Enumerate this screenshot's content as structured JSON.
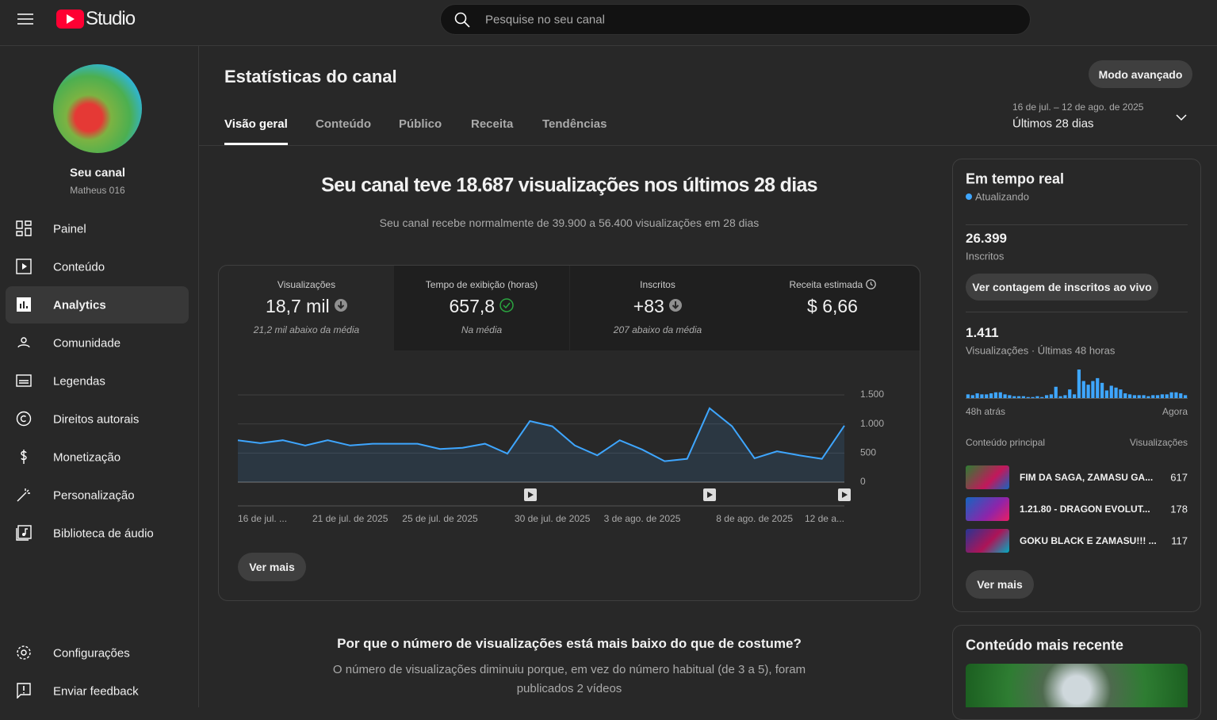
{
  "header": {
    "logo": "Studio",
    "search_placeholder": "Pesquise no seu canal"
  },
  "sidebar": {
    "channel_title": "Seu canal",
    "channel_name": "Matheus 016",
    "nav": [
      "Painel",
      "Conteúdo",
      "Analytics",
      "Comunidade",
      "Legendas",
      "Direitos autorais",
      "Monetização",
      "Personalização",
      "Biblioteca de áudio"
    ],
    "active": 2,
    "footer_nav": [
      "Configurações",
      "Enviar feedback"
    ]
  },
  "page": {
    "title": "Estatísticas do canal",
    "advanced_button": "Modo avançado",
    "tabs": [
      "Visão geral",
      "Conteúdo",
      "Público",
      "Receita",
      "Tendências"
    ],
    "active_tab": 0,
    "date_range": "16 de jul. – 12 de ago. de 2025",
    "period": "Últimos 28 dias"
  },
  "summary": {
    "headline": "Seu canal teve 18.687 visualizações nos últimos 28 dias",
    "subline": "Seu canal recebe normalmente de 39.900 a 56.400 visualizações em 28 dias"
  },
  "metrics": [
    {
      "label": "Visualizações",
      "value": "18,7 mil",
      "note": "21,2 mil abaixo da média"
    },
    {
      "label": "Tempo de exibição (horas)",
      "value": "657,8",
      "note": "Na média"
    },
    {
      "label": "Inscritos",
      "value": "+83",
      "note": "207 abaixo da média"
    },
    {
      "label": "Receita estimada",
      "value": "$ 6,66"
    }
  ],
  "chart": {
    "type": "line",
    "categories": [
      "16 de jul. ...",
      null,
      null,
      null,
      null,
      "21 de jul. de 2025",
      null,
      null,
      null,
      "25 de jul. de 2025",
      null,
      null,
      null,
      null,
      "30 de jul. de 2025",
      null,
      null,
      null,
      "3 de ago. de 2025",
      null,
      null,
      null,
      null,
      "8 de ago. de 2025",
      null,
      null,
      null,
      "12 de a..."
    ],
    "values": [
      720,
      670,
      720,
      630,
      720,
      630,
      660,
      660,
      660,
      570,
      590,
      660,
      490,
      1050,
      960,
      630,
      460,
      720,
      560,
      360,
      400,
      1270,
      960,
      410,
      530,
      460,
      400,
      970
    ],
    "ylim": [
      0,
      1500
    ],
    "yticks": [
      0,
      500,
      {
        "value": 1000,
        "label": "1.000"
      },
      {
        "value": 1500,
        "label": "1.500"
      }
    ],
    "grid": true,
    "color": "#3ea6ff"
  },
  "more_button": "Ver mais",
  "explanation": {
    "title": "Por que o número de visualizações está mais baixo do que de costume?",
    "text": "O número de visualizações diminuiu porque, em vez do número habitual (de 3 a 5), foram publicados 2 vídeos"
  },
  "realtime": {
    "title": "Em tempo real",
    "status": "Atualizando",
    "subscribers": "26.399",
    "subscribers_label": "Inscritos",
    "live_button": "Ver contagem de inscritos ao vivo",
    "views": "1.411",
    "views_label": "Visualizações · Últimas 48 horas",
    "chart": {
      "type": "bar",
      "color": "#3ea6ff",
      "values": [
        18,
        14,
        23,
        18,
        18,
        23,
        28,
        28,
        18,
        14,
        9,
        9,
        9,
        5,
        5,
        9,
        5,
        14,
        18,
        55,
        9,
        14,
        42,
        18,
        139,
        83,
        65,
        83,
        97,
        74,
        37,
        60,
        51,
        42,
        23,
        18,
        14,
        14,
        14,
        9,
        14,
        14,
        18,
        18,
        28,
        28,
        23,
        14
      ]
    },
    "start_label": "48h atrás",
    "end_label": "Agora",
    "top_header": "Conteúdo principal",
    "top_value_header": "Visualizações",
    "top_content": [
      {
        "title": "FIM DA SAGA, ZAMASU GA...",
        "views": 617
      },
      {
        "title": "1.21.80 - DRAGON EVOLUT...",
        "views": 178
      },
      {
        "title": "GOKU BLACK E ZAMASU!!! ...",
        "views": 117
      }
    ],
    "more_button": "Ver mais"
  },
  "recent": {
    "title": "Conteúdo mais recente"
  }
}
